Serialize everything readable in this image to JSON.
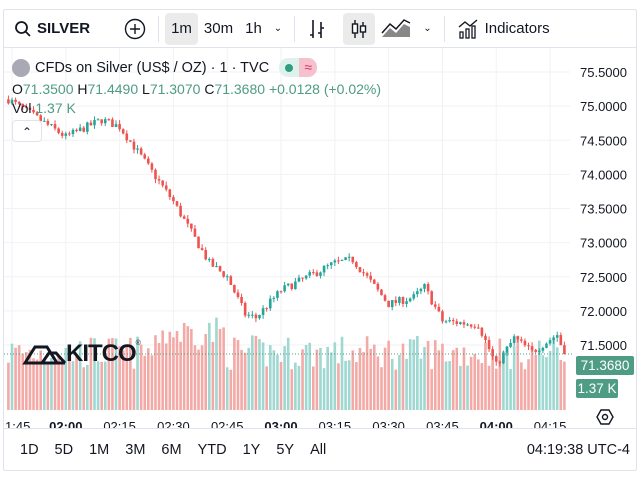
{
  "toolbar": {
    "symbol": "SILVER",
    "intervals": [
      "1m",
      "30m",
      "1h"
    ],
    "active_interval": "1m",
    "indicators_label": "Indicators"
  },
  "legend": {
    "title": "CFDs on Silver (US$ / OZ) · 1 · TVC",
    "o_label": "O",
    "o": "71.3500",
    "h_label": "H",
    "h": "71.4490",
    "l_label": "L",
    "l": "71.3070",
    "c_label": "C",
    "c": "71.3680",
    "change": "+0.0128 (+0.02%)",
    "vol_label": "Vol",
    "vol": "1.37 K"
  },
  "price_axis": {
    "labels": [
      "75.5000",
      "75.0000",
      "74.5000",
      "74.0000",
      "73.5000",
      "73.0000",
      "72.5000",
      "72.0000",
      "71.5000"
    ],
    "last_price": "71.3680",
    "last_volume": "1.37 K"
  },
  "time_axis": {
    "labels": [
      "1:45",
      "02:00",
      "02:15",
      "02:30",
      "02:45",
      "03:00",
      "03:15",
      "03:30",
      "03:45",
      "04:00",
      "04:15"
    ],
    "bold": [
      "02:00",
      "03:00",
      "04:00"
    ]
  },
  "logo": "KITCO",
  "bottom": {
    "ranges": [
      "1D",
      "5D",
      "1M",
      "3M",
      "6M",
      "YTD",
      "1Y",
      "5Y",
      "All"
    ],
    "clock": "04:19:38 UTC-4"
  },
  "colors": {
    "up": "#26a69a",
    "down": "#ef5350",
    "up_vol": "#9fd7d1",
    "down_vol": "#f3a9a6",
    "accent": "#4e9c84"
  },
  "chart_data": {
    "type": "candlestick",
    "interval": "1m",
    "price_range": [
      71.0,
      75.7
    ],
    "close_keypoints": [
      [
        "01:44",
        75.1
      ],
      [
        "02:00",
        74.55
      ],
      [
        "02:10",
        74.8
      ],
      [
        "02:15",
        74.7
      ],
      [
        "02:30",
        73.6
      ],
      [
        "02:40",
        72.7
      ],
      [
        "02:45",
        72.5
      ],
      [
        "02:50",
        71.95
      ],
      [
        "02:53",
        71.9
      ],
      [
        "03:00",
        72.3
      ],
      [
        "03:15",
        72.7
      ],
      [
        "03:20",
        72.75
      ],
      [
        "03:30",
        72.1
      ],
      [
        "03:37",
        72.2
      ],
      [
        "03:40",
        72.35
      ],
      [
        "03:45",
        71.85
      ],
      [
        "03:55",
        71.8
      ],
      [
        "04:00",
        71.2
      ],
      [
        "04:05",
        71.6
      ],
      [
        "04:10",
        71.4
      ],
      [
        "04:17",
        71.65
      ],
      [
        "04:19",
        71.368
      ]
    ]
  }
}
